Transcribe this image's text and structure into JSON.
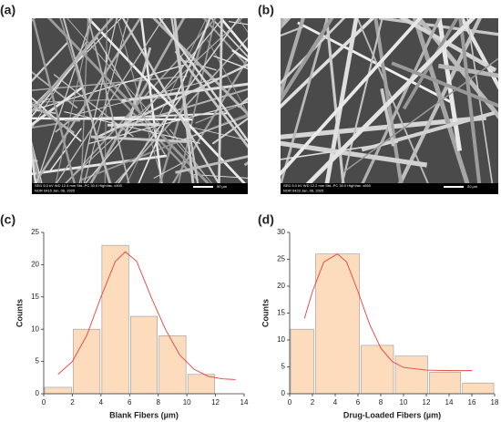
{
  "images": [
    {
      "label": "(a)",
      "info": [
        "SED 5.0 kV WD 12.4 mm Std.-PC 30.0 HighVac. x300",
        "NOR 0415 Jan. 06, 2025"
      ],
      "scale": "50 µm"
    },
    {
      "label": "(b)",
      "info": [
        "SED 5.0 kV WD 12.2 mm Std.-PC 30.0 HighVac. x650",
        "NOR 0423 Jan. 06, 2025"
      ],
      "scale": "20 µm"
    }
  ],
  "chart_data": [
    {
      "type": "histogram",
      "panel_label": "(c)",
      "xlabel": "Blank Fibers (µm)",
      "ylabel": "Counts",
      "bins": [
        0,
        2,
        4,
        6,
        8,
        10,
        12
      ],
      "values": [
        1,
        10,
        23,
        12,
        9,
        3
      ],
      "color": "#fcdcbc",
      "fit": {
        "x": [
          1,
          2,
          3,
          4,
          5,
          5.7,
          6.5,
          7.5,
          8.5,
          9.5,
          10.5,
          11.5,
          12.5,
          13.4
        ],
        "values": [
          3,
          5,
          9,
          15,
          20.5,
          22,
          20.5,
          15,
          10,
          6,
          3.8,
          2.7,
          2.3,
          2.2
        ],
        "color": "#e8413c"
      },
      "xlim": [
        0,
        14
      ],
      "xticks": [
        0,
        2,
        4,
        6,
        8,
        10,
        12,
        14
      ],
      "ylim": [
        0,
        25
      ],
      "yticks": [
        0,
        5,
        10,
        15,
        20,
        25
      ]
    },
    {
      "type": "histogram",
      "panel_label": "(d)",
      "xlabel": "Drug-Loaded Fibers (µm)",
      "ylabel": "Counts",
      "bins": [
        0,
        2.2,
        6.2,
        9.2,
        12.2,
        15.1,
        18
      ],
      "values": [
        12,
        26,
        9,
        7,
        4,
        2
      ],
      "color": "#fcdcbc",
      "fit": {
        "x": [
          1.3,
          2,
          3,
          4.2,
          5,
          6,
          7,
          8,
          9,
          10,
          12,
          14,
          16
        ],
        "values": [
          14,
          19,
          24.5,
          26,
          24.5,
          19,
          13,
          8.5,
          6,
          4.9,
          4.4,
          4.3,
          4.3
        ],
        "color": "#e8413c"
      },
      "xlim": [
        0,
        18
      ],
      "xticks": [
        0,
        2,
        4,
        6,
        8,
        10,
        12,
        14,
        16,
        18
      ],
      "ylim": [
        0,
        30
      ],
      "yticks": [
        0,
        5,
        10,
        15,
        20,
        25,
        30
      ]
    }
  ]
}
